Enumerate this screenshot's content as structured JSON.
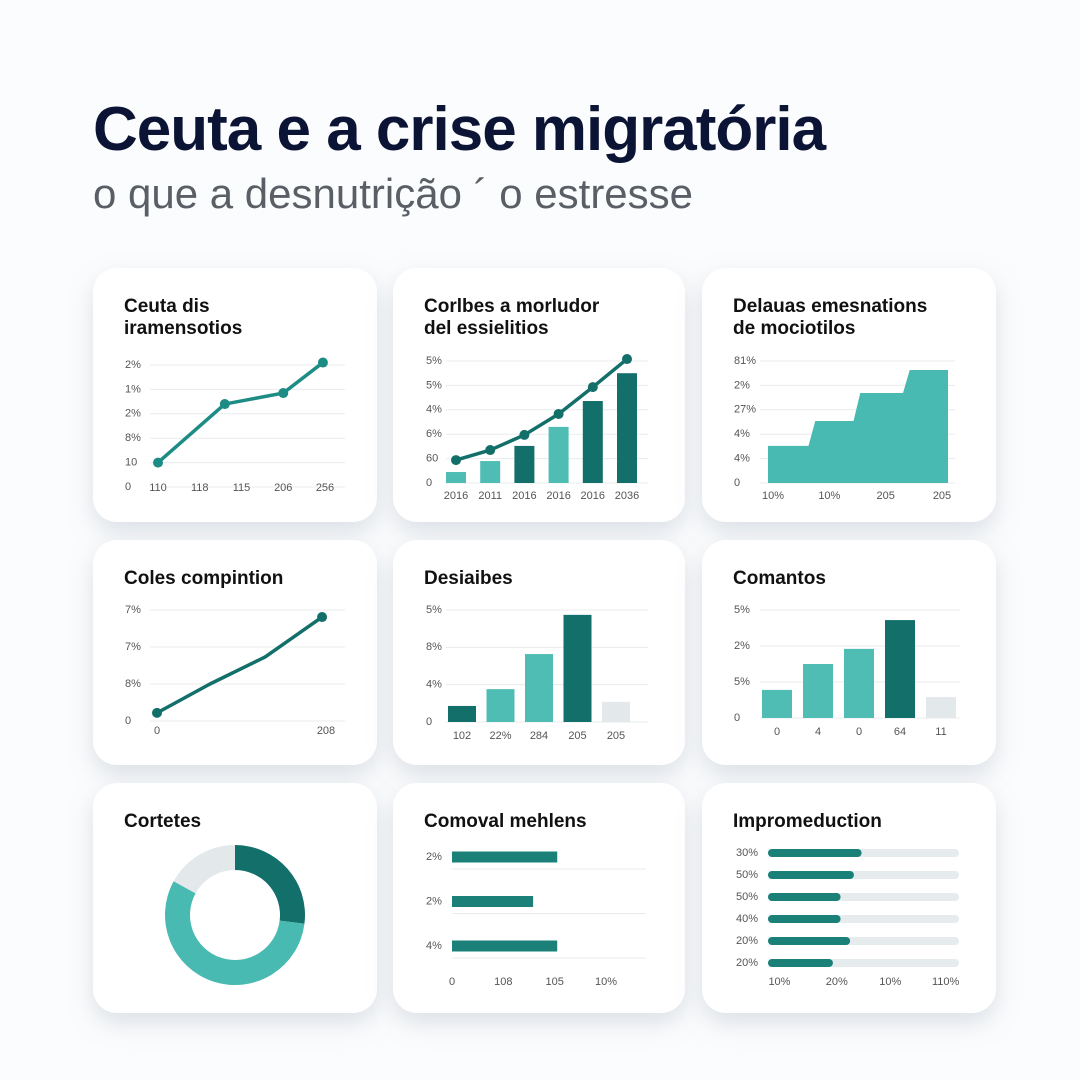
{
  "title": "Ceuta e a crise migratória",
  "subtitle": "o que a desnutrição ´ o estresse",
  "chart_data": [
    {
      "type": "line",
      "title": [
        "Ceuta dis",
        "iramensotios"
      ],
      "categories": [
        "110",
        "118",
        "115",
        "206",
        "256"
      ],
      "x": [
        0,
        1.6,
        3,
        3.95
      ],
      "values": [
        1,
        3.4,
        3.85,
        5.1
      ],
      "xlim": [
        0,
        4
      ],
      "ylim": [
        0,
        5
      ],
      "yticks": [
        0,
        {
          "value": 1,
          "label": "10"
        },
        {
          "value": 2,
          "label": "8%"
        },
        {
          "value": 3,
          "label": "2%"
        },
        {
          "value": 4,
          "label": "1%"
        },
        {
          "value": 5,
          "label": "2%"
        }
      ],
      "color": "#1d8c85",
      "markers": "all"
    },
    {
      "type": "combo",
      "title": [
        "Corlbes a morludor",
        "del essielitios"
      ],
      "categories": [
        "2016",
        "2011",
        "2016",
        "2016",
        "2016",
        "2036"
      ],
      "series": [
        {
          "type": "bar",
          "values": [
            0.45,
            0.9,
            1.52,
            2.3,
            3.36,
            4.5
          ],
          "colors": [
            "#4fbdb3",
            "#4fbdb3",
            "#136f6a",
            "#4fbdb3",
            "#136f6a",
            "#136f6a"
          ]
        },
        {
          "type": "line",
          "values": [
            0.94,
            1.35,
            1.97,
            2.83,
            3.93,
            5.08
          ],
          "color": "#136f6a"
        }
      ],
      "ylim": [
        0,
        5
      ],
      "yticks": [
        0,
        {
          "value": 1,
          "label": "60"
        },
        {
          "value": 2,
          "label": "6%"
        },
        {
          "value": 3,
          "label": "4%"
        },
        {
          "value": 4,
          "label": "5%"
        },
        {
          "value": 5,
          "label": "5%"
        }
      ]
    },
    {
      "type": "area",
      "title": [
        "Delauas emesnations",
        "de mociotilos"
      ],
      "categories": [
        "10%",
        "10%",
        "205",
        "205"
      ],
      "x": [
        0,
        0.9,
        1.05,
        1.9,
        2.05,
        3,
        3.15,
        4
      ],
      "values": [
        1.52,
        1.52,
        2.54,
        2.54,
        3.69,
        3.69,
        4.63,
        4.63
      ],
      "xlim": [
        0,
        4
      ],
      "ylim": [
        0,
        5
      ],
      "yticks": [
        0,
        {
          "value": 1,
          "label": "4%"
        },
        {
          "value": 2,
          "label": "4%"
        },
        {
          "value": 3,
          "label": "27%"
        },
        {
          "value": 4,
          "label": "2%"
        },
        {
          "value": 5,
          "label": "81%"
        }
      ],
      "color": "#48bab1"
    },
    {
      "type": "line",
      "title": [
        "Coles compintion"
      ],
      "categories": [
        "0",
        "208"
      ],
      "x": [
        0,
        0.94,
        1.92,
        2.93
      ],
      "values": [
        0.22,
        1,
        1.73,
        2.81
      ],
      "xlim": [
        0,
        3
      ],
      "ylim": [
        0,
        3
      ],
      "yticks": [
        0,
        {
          "value": 1,
          "label": "8%"
        },
        {
          "value": 2,
          "label": "7%"
        },
        {
          "value": 3,
          "label": "7%"
        }
      ],
      "color": "#136f6a",
      "markers": "ends"
    },
    {
      "type": "bar",
      "title": [
        "Desiaibes"
      ],
      "categories": [
        "102",
        "22%",
        "284",
        "205",
        "205"
      ],
      "values": [
        0.43,
        0.88,
        1.82,
        2.87,
        0.54
      ],
      "colors": [
        "#136f6a",
        "#4fbdb3",
        "#4fbdb3",
        "#136f6a",
        "#e3e8ea"
      ],
      "ylim": [
        0,
        3
      ],
      "yticks": [
        0,
        {
          "value": 1,
          "label": "4%"
        },
        {
          "value": 2,
          "label": "8%"
        },
        {
          "value": 3,
          "label": "5%"
        }
      ]
    },
    {
      "type": "bar",
      "title": [
        "Comantos"
      ],
      "categories": [
        "0",
        "4",
        "0",
        "64",
        "11"
      ],
      "values": [
        0.78,
        1.5,
        1.92,
        2.72,
        0.58
      ],
      "colors": [
        "#4fbdb3",
        "#4fbdb3",
        "#4fbdb3",
        "#136f6a",
        "#e3e8ea"
      ],
      "ylim": [
        0,
        3
      ],
      "yticks": [
        0,
        {
          "value": 1,
          "label": "5%"
        },
        {
          "value": 2,
          "label": "2%"
        },
        {
          "value": 3,
          "label": "5%"
        }
      ]
    },
    {
      "type": "pie",
      "title": [
        "Cortetes"
      ],
      "values": [
        27,
        56,
        17
      ],
      "colors": [
        "#136f6a",
        "#48bab1",
        "#e3e8ea"
      ],
      "donut": true
    },
    {
      "type": "hbar",
      "title": [
        "Comoval mehlens"
      ],
      "categories": [
        "2%",
        "2%",
        "4%"
      ],
      "values": [
        2.05,
        1.58,
        2.05
      ],
      "xlim": [
        0,
        3
      ],
      "xticks": [
        0,
        {
          "value": 1,
          "label": "108"
        },
        {
          "value": 2,
          "label": "105"
        },
        {
          "value": 3,
          "label": "10%"
        }
      ],
      "color": "#1a8078"
    },
    {
      "type": "progress",
      "title": [
        "Impromeduction"
      ],
      "categories": [
        "30%",
        "50%",
        "50%",
        "40%",
        "20%",
        "20%"
      ],
      "values": [
        49,
        45,
        38,
        38,
        43,
        34
      ],
      "xlim": [
        0,
        100
      ],
      "xticks": [
        {
          "value": 6,
          "label": "10%"
        },
        {
          "value": 36,
          "label": "20%"
        },
        {
          "value": 64,
          "label": "10%"
        },
        {
          "value": 93,
          "label": "110%"
        }
      ],
      "color": "#1a8078",
      "track_color": "#e6ebed"
    }
  ]
}
